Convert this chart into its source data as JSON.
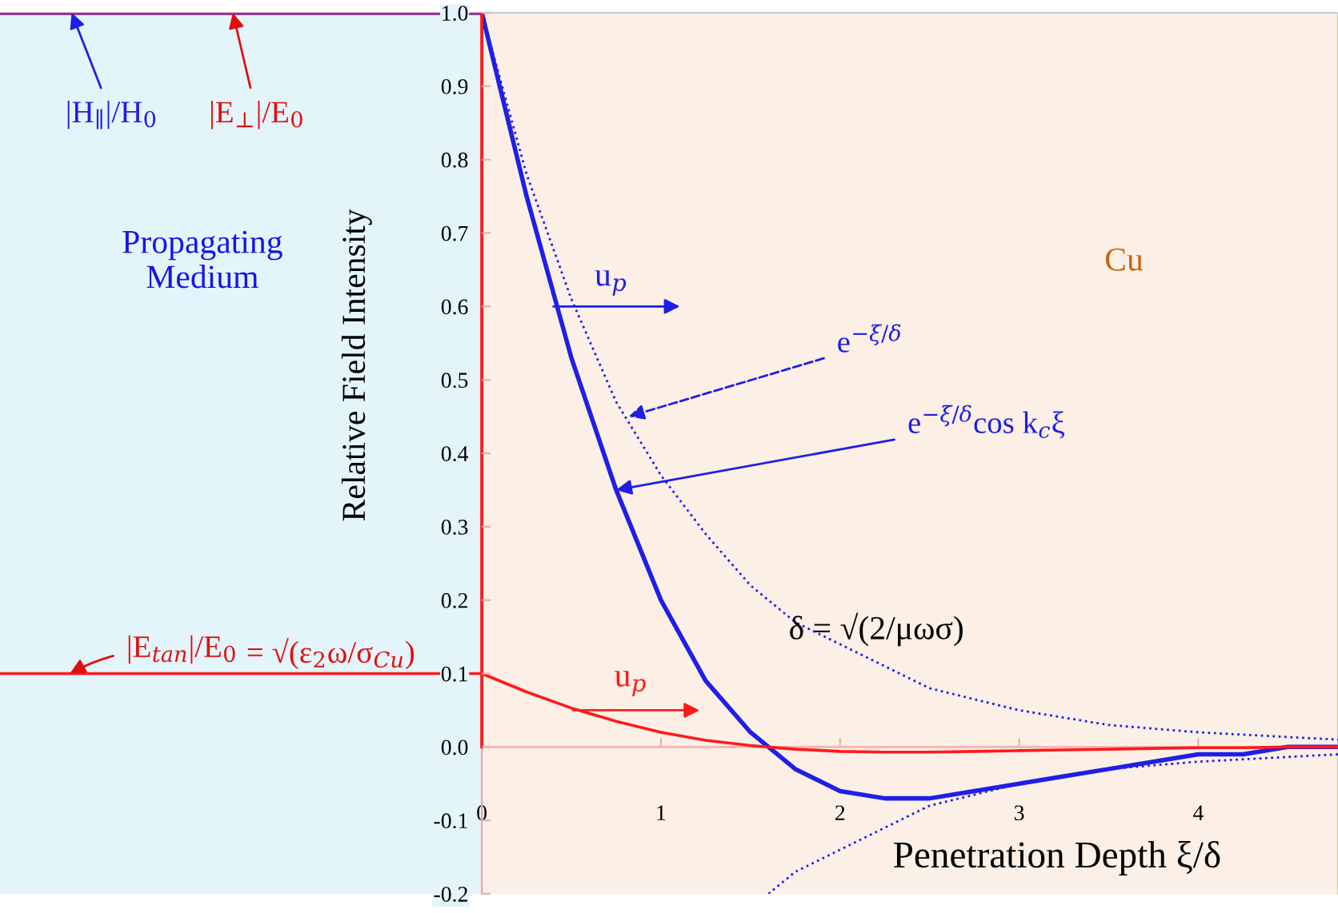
{
  "chart_data": {
    "type": "line",
    "xlabel": "Penetration Depth ξ/δ",
    "ylabel": "Relative Field Intensity",
    "xlim": [
      -2.69,
      4.78
    ],
    "ylim": [
      -0.2,
      1.0
    ],
    "xticks": [
      0,
      1,
      2,
      3,
      4
    ],
    "yticks": [
      {
        "value": -0.2,
        "label": "-0.2"
      },
      {
        "value": -0.1,
        "label": "-0.1"
      },
      {
        "value": 0,
        "label": "0.0"
      },
      {
        "value": 0.1,
        "label": "0.1"
      },
      {
        "value": 0.2,
        "label": "0.2"
      },
      {
        "value": 0.3,
        "label": "0.3"
      },
      {
        "value": 0.4,
        "label": "0.4"
      },
      {
        "value": 0.5,
        "label": "0.5"
      },
      {
        "value": 0.6,
        "label": "0.6"
      },
      {
        "value": 0.7,
        "label": "0.7"
      },
      {
        "value": 0.8,
        "label": "0.8"
      },
      {
        "value": 0.9,
        "label": "0.9"
      },
      {
        "value": 1.0,
        "label": "1.0"
      }
    ],
    "grid": false,
    "legend": false,
    "marker": "none",
    "series": [
      {
        "color": "#1f1fe6",
        "line_style": "dotted",
        "x": [
          0,
          0.25,
          0.5,
          0.75,
          1,
          1.25,
          1.5,
          1.75,
          2,
          2.5,
          3,
          3.5,
          4,
          4.78
        ],
        "values": [
          1,
          0.78,
          0.61,
          0.47,
          0.37,
          0.29,
          0.22,
          0.17,
          0.14,
          0.08,
          0.05,
          0.03,
          0.02,
          0.01
        ]
      },
      {
        "color": "#1f1fe6",
        "line_style": "dotted",
        "x": [
          1.6,
          1.75,
          2,
          2.5,
          3,
          3.5,
          4,
          4.78
        ],
        "values": [
          -0.2,
          -0.17,
          -0.14,
          -0.08,
          -0.05,
          -0.03,
          -0.02,
          -0.01
        ]
      },
      {
        "color": "#1f1fe6",
        "line_style": "solid",
        "x": [
          -2.69,
          0,
          0.25,
          0.5,
          0.75,
          1,
          1.25,
          1.5,
          1.75,
          2,
          2.25,
          2.5,
          2.75,
          3,
          3.25,
          3.5,
          3.75,
          4,
          4.25,
          4.5,
          4.78
        ],
        "values": [
          1,
          1,
          0.75,
          0.53,
          0.35,
          0.2,
          0.09,
          0.02,
          -0.03,
          -0.06,
          -0.07,
          -0.07,
          -0.06,
          -0.05,
          -0.04,
          -0.03,
          -0.02,
          -0.01,
          -0.01,
          0,
          0
        ]
      },
      {
        "color": "#ff1a1a",
        "line_style": "solid",
        "x": [
          -2.69,
          0,
          0
        ],
        "values": [
          1,
          1,
          0
        ]
      },
      {
        "color": "#ff1a1a",
        "line_style": "solid",
        "x": [
          -2.69,
          0,
          0.25,
          0.5,
          0.75,
          1,
          1.25,
          1.5,
          1.75,
          2,
          2.25,
          2.5,
          2.75,
          3,
          3.25,
          3.5,
          3.75,
          4,
          4.25,
          4.5,
          4.78
        ],
        "values": [
          0.1,
          0.1,
          0.075,
          0.053,
          0.035,
          0.02,
          0.009,
          0.002,
          -0.003,
          -0.006,
          -0.007,
          -0.007,
          -0.006,
          -0.005,
          -0.004,
          -0.003,
          -0.002,
          -0.001,
          -0.001,
          0,
          0
        ]
      }
    ],
    "bands": [
      {
        "axis": "x",
        "from": -2.69,
        "to": 0,
        "label": "Propagating Medium",
        "color": "#e3f4fb"
      },
      {
        "axis": "x",
        "from": 0,
        "to": 4.78,
        "label": "Cu",
        "color": "#fcefe6"
      }
    ],
    "ref_lines": [
      {
        "axis": "y",
        "value": 0,
        "color": "#f4b4b4"
      }
    ],
    "annotations": [
      {
        "text": "|H$_{∥}$|/H$_{0}$",
        "x": -2.29,
        "y": 1.0
      },
      {
        "text": "|E$_{⊥}$|/E$_{0}$",
        "x": -1.39,
        "y": 1.0
      },
      {
        "text": "|E$_{tan}$|/E$_{0}$",
        "x": -2.3,
        "y": 0.1
      },
      "= √(ε$_{2}$ω/σ$_{Cu}$)",
      {
        "text": "e$^{−ξ/δ}$",
        "x": 0.82,
        "y": 0.45
      },
      {
        "text": "e$^{−ξ/δ}$cos k$_{c}$ξ",
        "x": 0.75,
        "y": 0.35
      },
      {
        "text": "u$_{p}$",
        "x": 0.4,
        "y": 0.6
      },
      {
        "text": "u$_{p}$",
        "x": 0.51,
        "y": 0.05
      },
      "δ = √(2/μωσ)"
    ]
  }
}
